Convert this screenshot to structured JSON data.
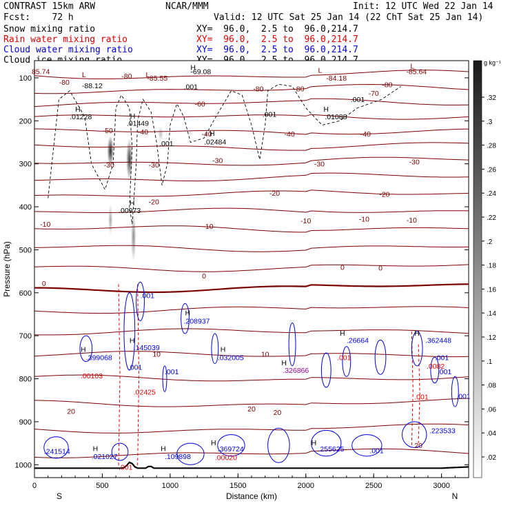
{
  "header": {
    "model": "CONTRAST 15km ARW",
    "center": "NCAR/MMM",
    "init": "Init: 12 UTC Wed 22 Jan 14",
    "fcst": "Fcst:    72 h",
    "valid": "Valid: 12 UTC Sat 25 Jan 14 (22 ChT Sat 25 Jan 14)"
  },
  "fields": [
    {
      "name": "Snow mixing ratio",
      "xy": "",
      "color": "#000000"
    },
    {
      "name": "Rain water mixing ratio",
      "xy": "XY=  96.0,  2.5 to  96.0,214.7",
      "color": "#e00000"
    },
    {
      "name": "Cloud water mixing ratio",
      "xy": "XY=  96.0,  2.5 to  96.0,214.7",
      "color": "#0000e0"
    },
    {
      "name": "Cloud ice mixing ratio",
      "xy": "XY=  96.0,  2.5 to  96.0,214.7",
      "color": "#000000"
    }
  ],
  "xy_snow": "XY=  96.0,  2.5 to  96.0,214.7",
  "chart_data": {
    "type": "contour",
    "xlabel": "Distance (km)",
    "ylabel": "Pressure (hPa)",
    "xlim": [
      0,
      3200
    ],
    "ylim": [
      1030,
      60
    ],
    "xticks": [
      "0",
      "500",
      "1000",
      "1500",
      "2000",
      "2500",
      "3000"
    ],
    "yticks": [
      "100",
      "200",
      "300",
      "400",
      "500",
      "600",
      "700",
      "800",
      "900",
      "1000"
    ],
    "end_labels": {
      "left": "S",
      "right": "N"
    },
    "colorbar": {
      "unit": "g kg⁻¹",
      "ticks": [
        ".32",
        ".3",
        ".28",
        ".26",
        ".24",
        ".22",
        ".2",
        ".18",
        ".16",
        ".14",
        ".12",
        ".1",
        ".08",
        ".06",
        ".04",
        ".02"
      ]
    },
    "temperature_labels": [
      {
        "x": 220,
        "p": 110,
        "t": "-80"
      },
      {
        "x": 680,
        "p": 95,
        "t": "-80"
      },
      {
        "x": 1650,
        "p": 125,
        "t": "-80"
      },
      {
        "x": 1950,
        "p": 125,
        "t": "-80"
      },
      {
        "x": 2600,
        "p": 115,
        "t": "-80"
      },
      {
        "x": 2500,
        "p": 135,
        "t": "-70"
      },
      {
        "x": 1220,
        "p": 160,
        "t": "-60"
      },
      {
        "x": 540,
        "p": 222,
        "t": "-50"
      },
      {
        "x": 800,
        "p": 225,
        "t": "-40"
      },
      {
        "x": 1270,
        "p": 230,
        "t": "-40"
      },
      {
        "x": 1880,
        "p": 230,
        "t": "-40"
      },
      {
        "x": 2440,
        "p": 230,
        "t": "-40"
      },
      {
        "x": 550,
        "p": 302,
        "t": "-30"
      },
      {
        "x": 880,
        "p": 302,
        "t": "-30"
      },
      {
        "x": 1350,
        "p": 292,
        "t": "-30"
      },
      {
        "x": 2100,
        "p": 300,
        "t": "-30"
      },
      {
        "x": 2800,
        "p": 295,
        "t": "-30"
      },
      {
        "x": 880,
        "p": 388,
        "t": "-20"
      },
      {
        "x": 1770,
        "p": 368,
        "t": "-20"
      },
      {
        "x": 2580,
        "p": 370,
        "t": "-20"
      },
      {
        "x": 80,
        "p": 440,
        "t": "-10"
      },
      {
        "x": 1280,
        "p": 445,
        "t": "-10"
      },
      {
        "x": 2000,
        "p": 432,
        "t": "-10"
      },
      {
        "x": 2430,
        "p": 428,
        "t": "-10"
      },
      {
        "x": 2780,
        "p": 430,
        "t": "-10"
      },
      {
        "x": 70,
        "p": 578,
        "t": "0"
      },
      {
        "x": 1250,
        "p": 560,
        "t": "0"
      },
      {
        "x": 2270,
        "p": 540,
        "t": "0"
      },
      {
        "x": 2550,
        "p": 542,
        "t": "0"
      },
      {
        "x": 900,
        "p": 742,
        "t": "10"
      },
      {
        "x": 1700,
        "p": 742,
        "t": "10"
      },
      {
        "x": 270,
        "p": 875,
        "t": "20"
      },
      {
        "x": 1600,
        "p": 870,
        "t": "20"
      },
      {
        "x": 1790,
        "p": 878,
        "t": "20"
      },
      {
        "x": 2830,
        "p": 955,
        "t": "20"
      }
    ],
    "extrema_labels": [
      {
        "x": -20,
        "p": 85,
        "t": "85.74",
        "c": "#800000"
      },
      {
        "x": 350,
        "p": 118,
        "t": "-88.12",
        "c": "#000000"
      },
      {
        "x": 1150,
        "p": 85,
        "t": "-69.08",
        "c": "#000000"
      },
      {
        "x": 830,
        "p": 100,
        "t": "-85.55",
        "c": "#800000"
      },
      {
        "x": 1100,
        "p": 120,
        "t": ".001",
        "c": "#000000"
      },
      {
        "x": 2150,
        "p": 100,
        "t": "-84.18",
        "c": "#800000"
      },
      {
        "x": 2740,
        "p": 85,
        "t": "-85.64",
        "c": "#800000"
      },
      {
        "x": 2330,
        "p": 150,
        "t": ".001",
        "c": "#000000"
      },
      {
        "x": 1680,
        "p": 184,
        "t": ".001",
        "c": "#000000"
      },
      {
        "x": 260,
        "p": 190,
        "t": ".01228",
        "c": "#000000"
      },
      {
        "x": 680,
        "p": 205,
        "t": ".01449",
        "c": "#000000"
      },
      {
        "x": 920,
        "p": 252,
        "t": ".001",
        "c": "#000000"
      },
      {
        "x": 1250,
        "p": 248,
        "t": ".02484",
        "c": "#000000"
      },
      {
        "x": 2140,
        "p": 190,
        "t": ".01088",
        "c": "#000000"
      },
      {
        "x": 620,
        "p": 408,
        "t": ".00973",
        "c": "#000000"
      },
      {
        "x": 780,
        "p": 606,
        "t": ".001",
        "c": "#0000e0"
      },
      {
        "x": 1100,
        "p": 665,
        "t": ".208937",
        "c": "#0000e0"
      },
      {
        "x": 380,
        "p": 750,
        "t": ".399068",
        "c": "#0000e0"
      },
      {
        "x": 730,
        "p": 727,
        "t": ".145039",
        "c": "#0000e0"
      },
      {
        "x": 1350,
        "p": 750,
        "t": ".032005",
        "c": "#0000e0"
      },
      {
        "x": 1830,
        "p": 780,
        "t": ".326866",
        "c": "#a000a0"
      },
      {
        "x": 2300,
        "p": 710,
        "t": ".26664",
        "c": "#0000e0"
      },
      {
        "x": 2230,
        "p": 750,
        "t": ".001",
        "c": "#e00000"
      },
      {
        "x": 2880,
        "p": 710,
        "t": ".362448",
        "c": "#0000e0"
      },
      {
        "x": 2950,
        "p": 750,
        "t": ".001",
        "c": "#0000e0"
      },
      {
        "x": 340,
        "p": 793,
        "t": ".00103",
        "c": "#e00000"
      },
      {
        "x": 690,
        "p": 773,
        "t": ".001",
        "c": "#0000e0"
      },
      {
        "x": 960,
        "p": 783,
        "t": ".001",
        "c": "#0000e0"
      },
      {
        "x": 2890,
        "p": 770,
        "t": ".0082",
        "c": "#e00000"
      },
      {
        "x": 2970,
        "p": 783,
        "t": ".001",
        "c": "#0000e0"
      },
      {
        "x": 730,
        "p": 830,
        "t": ".02425",
        "c": "#e00000"
      },
      {
        "x": 2800,
        "p": 842,
        "t": ".001",
        "c": "#e00000"
      },
      {
        "x": 3110,
        "p": 840,
        "t": ".001",
        "c": "#0000e0"
      },
      {
        "x": 70,
        "p": 968,
        "t": ".241514",
        "c": "#0000e0"
      },
      {
        "x": 420,
        "p": 980,
        "t": ".021027",
        "c": "#0000e0"
      },
      {
        "x": 960,
        "p": 980,
        "t": ".109898",
        "c": "#0000e0"
      },
      {
        "x": 1350,
        "p": 963,
        "t": ".369724",
        "c": "#0000e0"
      },
      {
        "x": 1330,
        "p": 983,
        "t": ".00020",
        "c": "#e00000"
      },
      {
        "x": 2090,
        "p": 963,
        "t": ".255625",
        "c": "#0000e0"
      },
      {
        "x": 2470,
        "p": 967,
        "t": ".001",
        "c": "#0000e0"
      },
      {
        "x": 2910,
        "p": 920,
        "t": ".223533",
        "c": "#0000e0"
      },
      {
        "x": 620,
        "p": 1005,
        "t": ".001",
        "c": "#e00000"
      }
    ],
    "H_markers": [
      {
        "x": 300,
        "p": 172
      },
      {
        "x": 705,
        "p": 188
      },
      {
        "x": 1150,
        "p": 75
      },
      {
        "x": 1290,
        "p": 228
      },
      {
        "x": 2130,
        "p": 172
      },
      {
        "x": 700,
        "p": 390
      },
      {
        "x": 1110,
        "p": 646
      },
      {
        "x": 340,
        "p": 731
      },
      {
        "x": 700,
        "p": 710
      },
      {
        "x": 1370,
        "p": 731
      },
      {
        "x": 1820,
        "p": 762
      },
      {
        "x": 2250,
        "p": 693
      },
      {
        "x": 2800,
        "p": 693
      },
      {
        "x": 430,
        "p": 962
      },
      {
        "x": 930,
        "p": 962
      },
      {
        "x": 1300,
        "p": 948
      },
      {
        "x": 2040,
        "p": 948
      }
    ],
    "L_markers": [
      {
        "x": 350,
        "p": 92
      },
      {
        "x": 820,
        "p": 92
      },
      {
        "x": 2090,
        "p": 82
      },
      {
        "x": 2770,
        "p": 72
      }
    ],
    "snow_cores": [
      {
        "x": 560,
        "p": 270,
        "w": 90,
        "h": 130,
        "a": 0.85
      },
      {
        "x": 700,
        "p": 290,
        "w": 90,
        "h": 180,
        "a": 0.75
      },
      {
        "x": 560,
        "p": 430,
        "w": 60,
        "h": 130,
        "a": 0.35
      },
      {
        "x": 730,
        "p": 470,
        "w": 70,
        "h": 210,
        "a": 0.45
      },
      {
        "x": 930,
        "p": 230,
        "w": 70,
        "h": 60,
        "a": 0.25
      },
      {
        "x": 1150,
        "p": 228,
        "w": 60,
        "h": 40,
        "a": 0.12
      }
    ]
  }
}
